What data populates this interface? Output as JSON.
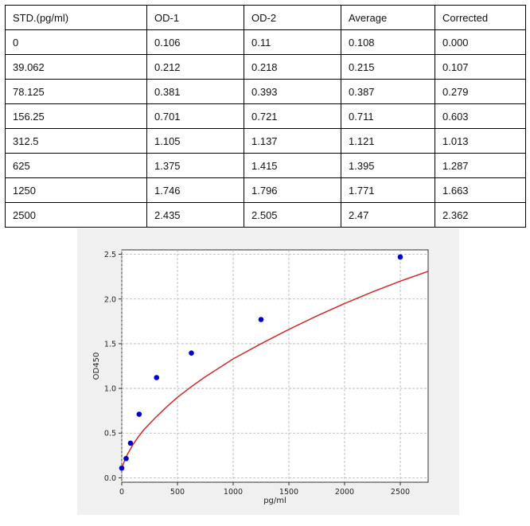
{
  "table": {
    "headers": [
      "STD.(pg/ml)",
      "OD-1",
      "OD-2",
      "Average",
      "Corrected"
    ],
    "rows": [
      [
        "0",
        "0.106",
        "0.11",
        "0.108",
        "0.000"
      ],
      [
        "39.062",
        "0.212",
        "0.218",
        "0.215",
        "0.107"
      ],
      [
        "78.125",
        "0.381",
        "0.393",
        "0.387",
        "0.279"
      ],
      [
        "156.25",
        "0.701",
        "0.721",
        "0.711",
        "0.603"
      ],
      [
        "312.5",
        "1.105",
        "1.137",
        "1.121",
        "1.013"
      ],
      [
        "625",
        "1.375",
        "1.415",
        "1.395",
        "1.287"
      ],
      [
        "1250",
        "1.746",
        "1.796",
        "1.771",
        "1.663"
      ],
      [
        "2500",
        "2.435",
        "2.505",
        "2.47",
        "2.362"
      ]
    ]
  },
  "chart_data": {
    "type": "scatter",
    "title": "",
    "xlabel": "pg/ml",
    "ylabel": "OD450",
    "xlim": [
      0,
      2750
    ],
    "ylim": [
      -0.05,
      2.55
    ],
    "xticks": [
      0,
      500,
      1000,
      1500,
      2000,
      2500
    ],
    "yticks": [
      0.0,
      0.5,
      1.0,
      1.5,
      2.0,
      2.5
    ],
    "xtick_labels": [
      "0",
      "500",
      "1000",
      "1500",
      "2000",
      "2500"
    ],
    "ytick_labels": [
      "0.0",
      "0.5",
      "1.0",
      "1.5",
      "2.0",
      "2.5"
    ],
    "grid": true,
    "series": [
      {
        "kind": "points",
        "color": "#0000cc",
        "x": [
          0,
          39.062,
          78.125,
          156.25,
          312.5,
          625,
          1250,
          2500
        ],
        "y": [
          0.108,
          0.215,
          0.387,
          0.711,
          1.121,
          1.395,
          1.771,
          2.47
        ]
      },
      {
        "kind": "fit-curve",
        "color": "#d62728",
        "x": [
          0,
          10,
          25,
          50,
          100,
          150,
          200,
          300,
          400,
          500,
          625,
          750,
          1000,
          1250,
          1500,
          1750,
          2000,
          2250,
          2500,
          2750
        ],
        "y": [
          0.1,
          0.139,
          0.19,
          0.26,
          0.37,
          0.46,
          0.54,
          0.67,
          0.79,
          0.9,
          1.02,
          1.13,
          1.33,
          1.5,
          1.66,
          1.81,
          1.95,
          2.08,
          2.2,
          2.31
        ]
      }
    ]
  }
}
